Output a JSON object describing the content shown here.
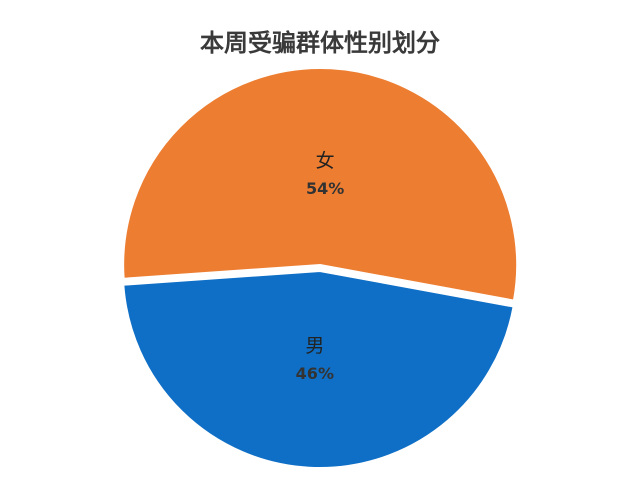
{
  "chart_data": {
    "type": "pie",
    "title": "本周受骗群体性别划分",
    "categories": [
      "女",
      "男"
    ],
    "values": [
      54,
      46
    ],
    "value_labels": [
      "54%",
      "46%"
    ],
    "colors": [
      "#ED7D31",
      "#0F6FC6"
    ]
  }
}
